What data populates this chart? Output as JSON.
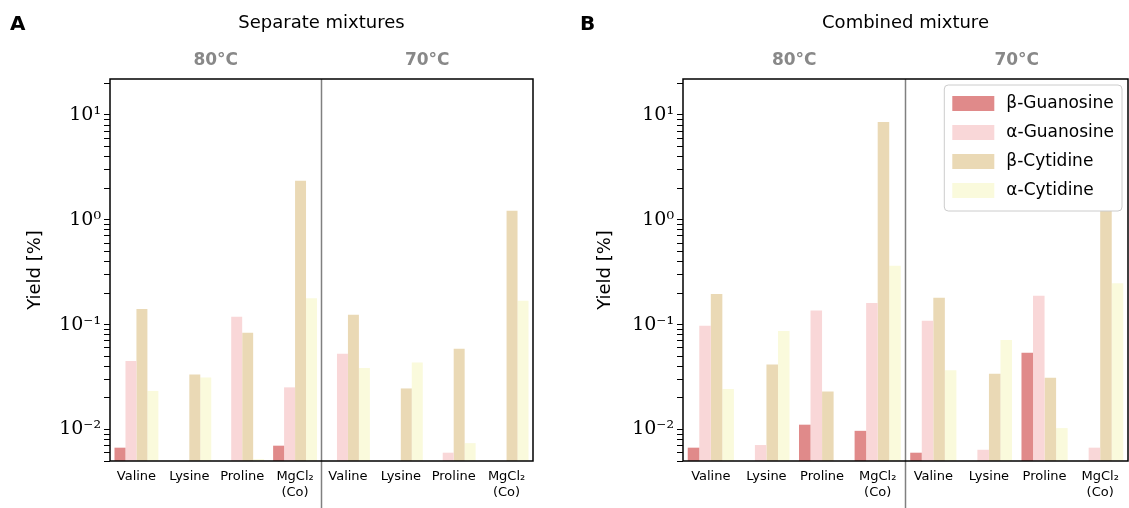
{
  "chart_data": [
    {
      "type": "bar",
      "title": "Separate mixtures",
      "ylabel": "Yield [%]",
      "annotations": [
        "A",
        "80°C",
        "70°C"
      ],
      "categories": [
        "Valine",
        "Lysine",
        "Proline",
        "MgCl₂\n(Co)",
        "Valine",
        "Lysine",
        "Proline",
        "MgCl₂\n(Co)"
      ],
      "series": [
        {
          "color": "#e08a8a",
          "values": [
            0.0067,
            null,
            null,
            0.007,
            null,
            null,
            null,
            null
          ]
        },
        {
          "color": "#f9d7d8",
          "values": [
            0.045,
            null,
            0.119,
            0.0252,
            0.0526,
            null,
            0.006,
            null
          ]
        },
        {
          "color": "#ead9b5",
          "values": [
            0.141,
            0.0334,
            0.0836,
            2.35,
            0.124,
            0.0246,
            0.0587,
            1.22
          ]
        },
        {
          "color": "#fafadc",
          "values": [
            0.0233,
            0.0313,
            0.0052,
            0.178,
            0.0385,
            0.0435,
            0.0074,
            0.169
          ]
        }
      ],
      "log": "y",
      "ylim": [
        0.005,
        22
      ],
      "yticks": [
        {
          "value": 0.005,
          "label": null
        },
        {
          "value": 0.006,
          "label": null
        },
        {
          "value": 0.007,
          "label": null
        },
        {
          "value": 0.008,
          "label": null
        },
        {
          "value": 0.009,
          "label": null
        },
        {
          "value": 0.01,
          "label": "10⁻²"
        },
        {
          "value": 0.02,
          "label": null
        },
        {
          "value": 0.03,
          "label": null
        },
        {
          "value": 0.04,
          "label": null
        },
        {
          "value": 0.05,
          "label": null
        },
        {
          "value": 0.06,
          "label": null
        },
        {
          "value": 0.07,
          "label": null
        },
        {
          "value": 0.08,
          "label": null
        },
        {
          "value": 0.09,
          "label": null
        },
        {
          "value": 0.1,
          "label": "10⁻¹"
        },
        {
          "value": 0.2,
          "label": null
        },
        {
          "value": 0.3,
          "label": null
        },
        {
          "value": 0.4,
          "label": null
        },
        {
          "value": 0.5,
          "label": null
        },
        {
          "value": 0.6,
          "label": null
        },
        {
          "value": 0.7,
          "label": null
        },
        {
          "value": 0.8,
          "label": null
        },
        {
          "value": 0.9,
          "label": null
        },
        {
          "value": 1,
          "label": "10⁰"
        },
        {
          "value": 2,
          "label": null
        },
        {
          "value": 3,
          "label": null
        },
        {
          "value": 4,
          "label": null
        },
        {
          "value": 5,
          "label": null
        },
        {
          "value": 6,
          "label": null
        },
        {
          "value": 7,
          "label": null
        },
        {
          "value": 8,
          "label": null
        },
        {
          "value": 9,
          "label": null
        },
        {
          "value": 10,
          "label": "10¹"
        },
        {
          "value": 20,
          "label": null
        }
      ],
      "grid": false,
      "legend": false
    },
    {
      "type": "bar",
      "title": "Combined mixture",
      "ylabel": "Yield [%]",
      "annotations": [
        "B",
        "80°C",
        "70°C"
      ],
      "categories": [
        "Valine",
        "Lysine",
        "Proline",
        "MgCl₂\n(Co)",
        "Valine",
        "Lysine",
        "Proline",
        "MgCl₂\n(Co)"
      ],
      "series": [
        {
          "name": "β-Guanosine",
          "color": "#e08a8a",
          "values": [
            0.0067,
            null,
            0.0111,
            0.0097,
            0.006,
            null,
            0.0538,
            null
          ]
        },
        {
          "name": "α-Guanosine",
          "color": "#f9d7d8",
          "values": [
            0.0975,
            0.0071,
            0.136,
            0.161,
            0.109,
            0.0064,
            0.188,
            0.0067
          ]
        },
        {
          "name": "β-Cytidine",
          "color": "#ead9b5",
          "values": [
            0.196,
            0.0416,
            0.023,
            8.55,
            0.18,
            0.034,
            0.0311,
            1.21
          ]
        },
        {
          "name": "α-Cytidine",
          "color": "#fafadc",
          "values": [
            0.0243,
            0.0869,
            null,
            0.364,
            0.0367,
            0.0713,
            0.0103,
            0.248
          ]
        }
      ],
      "log": "y",
      "ylim": [
        0.005,
        22
      ],
      "yticks": [
        {
          "value": 0.005,
          "label": null
        },
        {
          "value": 0.006,
          "label": null
        },
        {
          "value": 0.007,
          "label": null
        },
        {
          "value": 0.008,
          "label": null
        },
        {
          "value": 0.009,
          "label": null
        },
        {
          "value": 0.01,
          "label": "10⁻²"
        },
        {
          "value": 0.02,
          "label": null
        },
        {
          "value": 0.03,
          "label": null
        },
        {
          "value": 0.04,
          "label": null
        },
        {
          "value": 0.05,
          "label": null
        },
        {
          "value": 0.06,
          "label": null
        },
        {
          "value": 0.07,
          "label": null
        },
        {
          "value": 0.08,
          "label": null
        },
        {
          "value": 0.09,
          "label": null
        },
        {
          "value": 0.1,
          "label": "10⁻¹"
        },
        {
          "value": 0.2,
          "label": null
        },
        {
          "value": 0.3,
          "label": null
        },
        {
          "value": 0.4,
          "label": null
        },
        {
          "value": 0.5,
          "label": null
        },
        {
          "value": 0.6,
          "label": null
        },
        {
          "value": 0.7,
          "label": null
        },
        {
          "value": 0.8,
          "label": null
        },
        {
          "value": 0.9,
          "label": null
        },
        {
          "value": 1,
          "label": "10⁰"
        },
        {
          "value": 2,
          "label": null
        },
        {
          "value": 3,
          "label": null
        },
        {
          "value": 4,
          "label": null
        },
        {
          "value": 5,
          "label": null
        },
        {
          "value": 6,
          "label": null
        },
        {
          "value": 7,
          "label": null
        },
        {
          "value": 8,
          "label": null
        },
        {
          "value": 9,
          "label": null
        },
        {
          "value": 10,
          "label": "10¹"
        },
        {
          "value": 20,
          "label": null
        }
      ],
      "grid": false,
      "legend": "top right"
    }
  ]
}
